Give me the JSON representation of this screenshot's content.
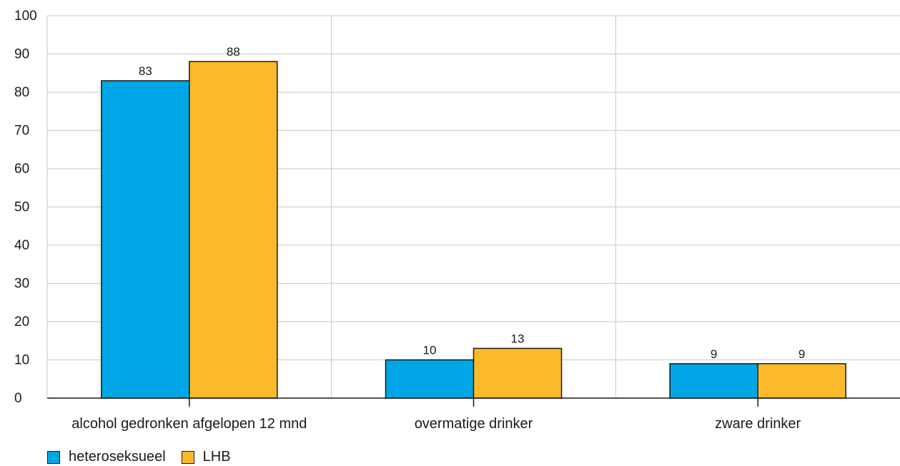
{
  "chart_data": {
    "type": "bar",
    "categories": [
      "alcohol gedronken afgelopen 12 mnd",
      "overmatige drinker",
      "zware drinker"
    ],
    "series": [
      {
        "name": "heteroseksueel",
        "values": [
          83,
          10,
          9
        ],
        "labels": [
          "83",
          "10",
          "9"
        ],
        "color": "#00A6E5"
      },
      {
        "name": "LHB",
        "values": [
          88,
          13,
          9
        ],
        "labels": [
          "88",
          "13",
          "9"
        ],
        "color": "#FBBA2C"
      }
    ],
    "ylim": [
      0,
      100
    ],
    "yticks": [
      "0",
      "10",
      "20",
      "30",
      "40",
      "50",
      "60",
      "70",
      "80",
      "90",
      "100"
    ],
    "grid": true,
    "legend_position": "bottom-left",
    "title": "",
    "xlabel": "",
    "ylabel": ""
  }
}
